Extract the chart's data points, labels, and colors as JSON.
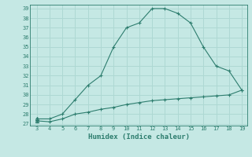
{
  "xlabel": "Humidex (Indice chaleur)",
  "x_values": [
    3,
    4,
    5,
    6,
    7,
    8,
    9,
    10,
    11,
    12,
    13,
    14,
    15,
    16,
    17,
    18,
    19
  ],
  "y_max_values": [
    27.5,
    27.5,
    28.0,
    29.5,
    31.0,
    32.0,
    35.0,
    37.0,
    37.5,
    39.0,
    39.0,
    38.5,
    37.5,
    35.0,
    33.0,
    32.5,
    30.5
  ],
  "y_min_values": [
    27.3,
    27.2,
    27.5,
    28.0,
    28.2,
    28.5,
    28.7,
    29.0,
    29.2,
    29.4,
    29.5,
    29.6,
    29.7,
    29.8,
    29.9,
    30.0,
    30.5
  ],
  "line_color": "#2d7d6e",
  "bg_color": "#c5e8e4",
  "grid_color": "#aed8d3",
  "ylim": [
    27,
    39
  ],
  "xlim": [
    3,
    19
  ],
  "yticks": [
    27,
    28,
    29,
    30,
    31,
    32,
    33,
    34,
    35,
    36,
    37,
    38,
    39
  ],
  "xticks": [
    3,
    4,
    5,
    6,
    7,
    8,
    9,
    10,
    11,
    12,
    13,
    14,
    15,
    16,
    17,
    18,
    19
  ]
}
